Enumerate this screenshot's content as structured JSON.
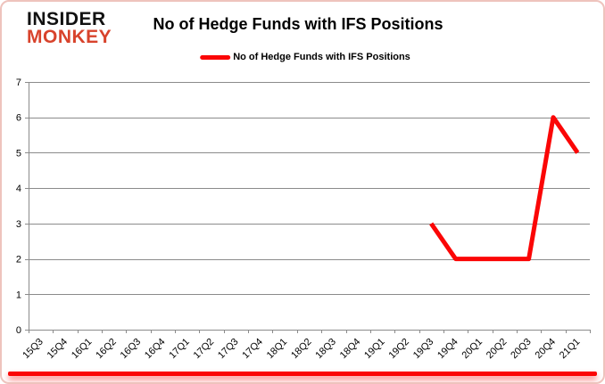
{
  "logo": {
    "line1": "INSIDER",
    "line2": "MONKEY"
  },
  "header": {
    "title": "No of Hedge Funds with IFS Positions"
  },
  "legend": {
    "label": "No of Hedge Funds with IFS Positions",
    "swatch_color": "#fb0606"
  },
  "colors": {
    "line": "#fb0606",
    "grid": "#8b8b8b",
    "axis_text": "#000000",
    "logo_black": "#111111",
    "logo_red": "#d8432c",
    "card_border": "#eec3bd",
    "accent_bar": "#fb0606"
  },
  "chart_data": {
    "type": "line",
    "title": "No of Hedge Funds with IFS Positions",
    "xlabel": "",
    "ylabel": "",
    "categories": [
      "15Q3",
      "15Q4",
      "16Q1",
      "16Q2",
      "16Q3",
      "16Q4",
      "17Q1",
      "17Q2",
      "17Q3",
      "17Q4",
      "18Q1",
      "18Q2",
      "18Q3",
      "18Q4",
      "19Q1",
      "19Q2",
      "19Q3",
      "19Q4",
      "20Q1",
      "20Q2",
      "20Q3",
      "20Q4",
      "21Q1"
    ],
    "series": [
      {
        "name": "No of Hedge Funds with IFS Positions",
        "color": "#fb0606",
        "values": [
          null,
          null,
          null,
          null,
          null,
          null,
          null,
          null,
          null,
          null,
          null,
          null,
          null,
          null,
          null,
          null,
          3,
          2,
          2,
          2,
          2,
          6,
          5
        ]
      }
    ],
    "ylim": [
      0,
      7
    ],
    "ytick_step": 1,
    "grid": true,
    "legend_position": "top"
  }
}
